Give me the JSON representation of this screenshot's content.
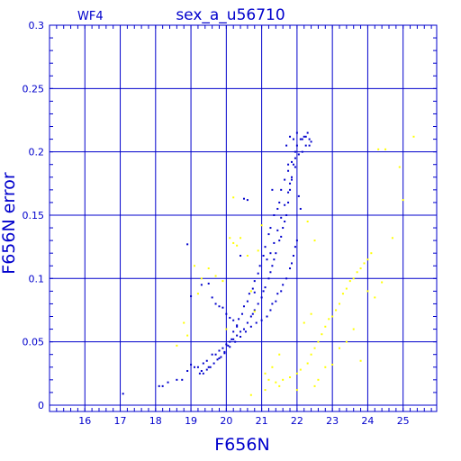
{
  "chart_data": {
    "type": "scatter",
    "title": "sex_a_u56710",
    "subtitle": "WF4",
    "xlabel": "F656N",
    "ylabel": "F656N error",
    "xlim": [
      15.0,
      25.95
    ],
    "ylim": [
      -0.005,
      0.3
    ],
    "grid": true,
    "x_ticks": [
      16,
      17,
      18,
      19,
      20,
      21,
      22,
      23,
      24,
      25
    ],
    "y_ticks": [
      0,
      0.05,
      0.1,
      0.15,
      0.2,
      0.25,
      0.3
    ],
    "y_tick_labels": [
      "0",
      "0.05",
      "0.1",
      "0.15",
      "0.2",
      "0.25",
      "0.3"
    ],
    "colors": {
      "axes": "#0000cc",
      "series_blue": "#0000cc",
      "series_yellow": "#ffff00"
    },
    "series": [
      {
        "color": "#0000cc",
        "points": [
          [
            17.08,
            0.009
          ],
          [
            18.1,
            0.015
          ],
          [
            18.2,
            0.015
          ],
          [
            18.35,
            0.018
          ],
          [
            18.6,
            0.02
          ],
          [
            18.75,
            0.02
          ],
          [
            18.9,
            0.027
          ],
          [
            19.0,
            0.032
          ],
          [
            19.1,
            0.03
          ],
          [
            19.2,
            0.03
          ],
          [
            19.3,
            0.027
          ],
          [
            19.35,
            0.033
          ],
          [
            19.45,
            0.035
          ],
          [
            19.5,
            0.03
          ],
          [
            19.6,
            0.04
          ],
          [
            19.7,
            0.04
          ],
          [
            19.8,
            0.043
          ],
          [
            19.9,
            0.045
          ],
          [
            20.0,
            0.048
          ],
          [
            20.1,
            0.05
          ],
          [
            20.2,
            0.052
          ],
          [
            20.3,
            0.055
          ],
          [
            20.4,
            0.058
          ],
          [
            20.5,
            0.06
          ],
          [
            20.6,
            0.065
          ],
          [
            20.7,
            0.07
          ],
          [
            20.75,
            0.072
          ],
          [
            20.8,
            0.075
          ],
          [
            20.9,
            0.08
          ],
          [
            21.0,
            0.085
          ],
          [
            21.05,
            0.09
          ],
          [
            21.1,
            0.093
          ],
          [
            21.2,
            0.1
          ],
          [
            21.25,
            0.105
          ],
          [
            21.3,
            0.11
          ],
          [
            21.35,
            0.115
          ],
          [
            21.4,
            0.12
          ],
          [
            21.5,
            0.13
          ],
          [
            21.55,
            0.133
          ],
          [
            21.6,
            0.14
          ],
          [
            21.65,
            0.145
          ],
          [
            21.7,
            0.15
          ],
          [
            21.75,
            0.16
          ],
          [
            21.8,
            0.17
          ],
          [
            21.85,
            0.18
          ],
          [
            21.9,
            0.19
          ],
          [
            21.95,
            0.2
          ],
          [
            22.0,
            0.205
          ],
          [
            22.1,
            0.21
          ],
          [
            22.2,
            0.212
          ],
          [
            22.3,
            0.215
          ],
          [
            22.35,
            0.21
          ],
          [
            22.4,
            0.208
          ],
          [
            22.25,
            0.205
          ],
          [
            22.15,
            0.2
          ],
          [
            21.95,
            0.195
          ],
          [
            21.85,
            0.192
          ],
          [
            21.75,
            0.185
          ],
          [
            21.65,
            0.178
          ],
          [
            21.55,
            0.17
          ],
          [
            21.5,
            0.16
          ],
          [
            21.45,
            0.155
          ],
          [
            21.35,
            0.15
          ],
          [
            21.25,
            0.14
          ],
          [
            21.2,
            0.135
          ],
          [
            21.1,
            0.125
          ],
          [
            21.05,
            0.118
          ],
          [
            20.95,
            0.11
          ],
          [
            20.9,
            0.104
          ],
          [
            20.8,
            0.098
          ],
          [
            20.75,
            0.092
          ],
          [
            20.65,
            0.088
          ],
          [
            20.6,
            0.082
          ],
          [
            20.5,
            0.078
          ],
          [
            20.45,
            0.072
          ],
          [
            20.35,
            0.068
          ],
          [
            20.3,
            0.062
          ],
          [
            20.2,
            0.058
          ],
          [
            20.15,
            0.052
          ],
          [
            20.05,
            0.047
          ],
          [
            19.95,
            0.042
          ],
          [
            19.85,
            0.038
          ],
          [
            19.75,
            0.036
          ],
          [
            19.65,
            0.033
          ],
          [
            19.55,
            0.03
          ],
          [
            19.45,
            0.028
          ],
          [
            19.35,
            0.025
          ],
          [
            19.25,
            0.025
          ],
          [
            18.9,
            0.127
          ],
          [
            19.3,
            0.095
          ],
          [
            19.5,
            0.096
          ],
          [
            19.6,
            0.085
          ],
          [
            19.7,
            0.08
          ],
          [
            19.8,
            0.078
          ],
          [
            19.9,
            0.077
          ],
          [
            20.0,
            0.072
          ],
          [
            20.1,
            0.069
          ],
          [
            20.2,
            0.067
          ],
          [
            20.3,
            0.063
          ],
          [
            19.0,
            0.086
          ],
          [
            20.5,
            0.163
          ],
          [
            20.6,
            0.162
          ],
          [
            20.4,
            0.118
          ],
          [
            20.8,
            0.089
          ],
          [
            21.3,
            0.17
          ],
          [
            21.7,
            0.205
          ],
          [
            21.75,
            0.19
          ],
          [
            21.8,
            0.175
          ],
          [
            22.05,
            0.165
          ],
          [
            22.1,
            0.155
          ],
          [
            22.0,
            0.13
          ],
          [
            21.95,
            0.125
          ],
          [
            21.9,
            0.118
          ],
          [
            21.85,
            0.112
          ],
          [
            21.8,
            0.108
          ],
          [
            21.7,
            0.1
          ],
          [
            21.6,
            0.095
          ],
          [
            21.55,
            0.09
          ],
          [
            21.45,
            0.088
          ],
          [
            21.4,
            0.082
          ],
          [
            21.3,
            0.08
          ],
          [
            21.25,
            0.075
          ],
          [
            21.15,
            0.07
          ],
          [
            21.0,
            0.067
          ],
          [
            20.85,
            0.065
          ],
          [
            20.7,
            0.062
          ],
          [
            20.55,
            0.058
          ],
          [
            20.4,
            0.054
          ],
          [
            20.25,
            0.05
          ],
          [
            20.1,
            0.046
          ],
          [
            19.95,
            0.041
          ],
          [
            19.8,
            0.037
          ],
          [
            21.15,
            0.115
          ],
          [
            21.25,
            0.12
          ],
          [
            21.35,
            0.128
          ],
          [
            21.45,
            0.138
          ],
          [
            21.55,
            0.148
          ],
          [
            21.65,
            0.158
          ],
          [
            21.75,
            0.168
          ],
          [
            21.85,
            0.178
          ],
          [
            21.95,
            0.188
          ],
          [
            22.05,
            0.198
          ],
          [
            22.15,
            0.21
          ],
          [
            22.25,
            0.212
          ],
          [
            22.35,
            0.205
          ],
          [
            21.9,
            0.21
          ],
          [
            21.8,
            0.212
          ],
          [
            22.0,
            0.215
          ]
        ]
      },
      {
        "color": "#ffff00",
        "points": [
          [
            18.6,
            0.047
          ],
          [
            18.8,
            0.065
          ],
          [
            18.9,
            0.055
          ],
          [
            19.1,
            0.11
          ],
          [
            19.2,
            0.088
          ],
          [
            19.3,
            0.1
          ],
          [
            19.5,
            0.108
          ],
          [
            19.7,
            0.102
          ],
          [
            19.9,
            0.098
          ],
          [
            20.0,
            0.06
          ],
          [
            20.1,
            0.132
          ],
          [
            20.2,
            0.128
          ],
          [
            20.3,
            0.126
          ],
          [
            20.4,
            0.132
          ],
          [
            20.6,
            0.118
          ],
          [
            20.7,
            0.09
          ],
          [
            20.8,
            0.074
          ],
          [
            20.9,
            0.122
          ],
          [
            21.0,
            0.142
          ],
          [
            20.2,
            0.164
          ],
          [
            20.7,
            0.008
          ],
          [
            21.1,
            0.012
          ],
          [
            21.2,
            0.02
          ],
          [
            21.4,
            0.018
          ],
          [
            21.5,
            0.015
          ],
          [
            21.6,
            0.02
          ],
          [
            21.8,
            0.022
          ],
          [
            22.0,
            0.025
          ],
          [
            22.1,
            0.028
          ],
          [
            22.3,
            0.033
          ],
          [
            22.4,
            0.04
          ],
          [
            22.5,
            0.045
          ],
          [
            22.6,
            0.05
          ],
          [
            22.7,
            0.056
          ],
          [
            22.8,
            0.062
          ],
          [
            22.9,
            0.068
          ],
          [
            23.0,
            0.07
          ],
          [
            23.1,
            0.075
          ],
          [
            23.2,
            0.08
          ],
          [
            23.3,
            0.088
          ],
          [
            23.4,
            0.092
          ],
          [
            23.5,
            0.098
          ],
          [
            23.6,
            0.1
          ],
          [
            23.7,
            0.105
          ],
          [
            23.8,
            0.108
          ],
          [
            23.9,
            0.112
          ],
          [
            24.0,
            0.115
          ],
          [
            24.1,
            0.12
          ],
          [
            22.2,
            0.065
          ],
          [
            22.4,
            0.072
          ],
          [
            22.6,
            0.02
          ],
          [
            22.8,
            0.03
          ],
          [
            23.0,
            0.032
          ],
          [
            23.2,
            0.045
          ],
          [
            23.4,
            0.05
          ],
          [
            23.6,
            0.06
          ],
          [
            23.8,
            0.035
          ],
          [
            24.0,
            0.09
          ],
          [
            24.3,
            0.202
          ],
          [
            24.5,
            0.202
          ],
          [
            24.9,
            0.188
          ],
          [
            25.3,
            0.212
          ],
          [
            25.0,
            0.162
          ],
          [
            24.7,
            0.132
          ],
          [
            24.4,
            0.097
          ],
          [
            24.2,
            0.085
          ],
          [
            22.3,
            0.145
          ],
          [
            22.5,
            0.13
          ],
          [
            21.5,
            0.04
          ],
          [
            21.3,
            0.03
          ],
          [
            21.1,
            0.025
          ],
          [
            22.0,
            0.012
          ],
          [
            22.5,
            0.015
          ]
        ]
      }
    ]
  }
}
